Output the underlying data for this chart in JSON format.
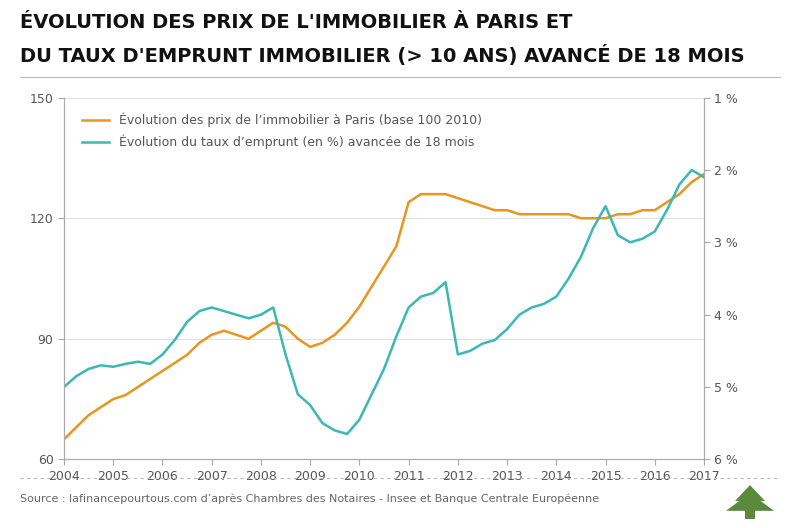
{
  "title_line1": "ÉVOLUTION DES PRIX DE L'IMMOBILIER À PARIS ET",
  "title_line2": "DU TAUX D'EMPRUNT IMMOBILIER (> 10 ANS) AVANCÉ DE 18 MOIS",
  "legend1": "Évolution des prix de l’immobilier à Paris (base 100 2010)",
  "legend2": "Évolution du taux d’emprunt (en %) avancée de 18 mois",
  "source": "Source : lafinancepourtous.com d’après Chambres des Notaires - Insee et Banque Centrale Européenne",
  "color_immo": "#E8961E",
  "color_taux": "#3CB8B2",
  "bg_color": "#FFFFFF",
  "title_color": "#111111",
  "text_color": "#555555",
  "grid_color": "#e0e0e0",
  "spine_color": "#aaaaaa",
  "yleft_min": 60,
  "yleft_max": 150,
  "yright_min": 1,
  "yright_max": 6,
  "immo_x": [
    2004.0,
    2004.25,
    2004.5,
    2004.75,
    2005.0,
    2005.25,
    2005.5,
    2005.75,
    2006.0,
    2006.25,
    2006.5,
    2006.75,
    2007.0,
    2007.25,
    2007.5,
    2007.75,
    2008.0,
    2008.25,
    2008.5,
    2008.75,
    2009.0,
    2009.25,
    2009.5,
    2009.75,
    2010.0,
    2010.25,
    2010.5,
    2010.75,
    2011.0,
    2011.25,
    2011.5,
    2011.75,
    2012.0,
    2012.25,
    2012.5,
    2012.75,
    2013.0,
    2013.25,
    2013.5,
    2013.75,
    2014.0,
    2014.25,
    2014.5,
    2014.75,
    2015.0,
    2015.25,
    2015.5,
    2015.75,
    2016.0,
    2016.25,
    2016.5,
    2016.75,
    2017.0
  ],
  "immo_y": [
    65,
    68,
    71,
    73,
    75,
    76,
    78,
    80,
    82,
    84,
    86,
    89,
    91,
    92,
    91,
    90,
    92,
    94,
    93,
    90,
    88,
    89,
    91,
    94,
    98,
    103,
    108,
    113,
    124,
    126,
    126,
    126,
    125,
    124,
    123,
    122,
    122,
    121,
    121,
    121,
    121,
    121,
    120,
    120,
    120,
    121,
    121,
    122,
    122,
    124,
    126,
    129,
    131
  ],
  "taux_y": [
    5.0,
    4.85,
    4.75,
    4.7,
    4.72,
    4.68,
    4.65,
    4.68,
    4.55,
    4.35,
    4.1,
    3.95,
    3.9,
    3.95,
    4.0,
    4.05,
    4.0,
    3.9,
    4.55,
    5.1,
    5.25,
    5.5,
    5.6,
    5.65,
    5.45,
    5.1,
    4.75,
    4.3,
    3.9,
    3.75,
    3.7,
    3.55,
    4.55,
    4.5,
    4.4,
    4.35,
    4.2,
    4.0,
    3.9,
    3.85,
    3.75,
    3.5,
    3.2,
    2.8,
    2.5,
    2.9,
    3.0,
    2.95,
    2.85,
    2.55,
    2.2,
    2.0,
    2.1
  ],
  "xlim": [
    2004,
    2017
  ],
  "xticks": [
    2004,
    2005,
    2006,
    2007,
    2008,
    2009,
    2010,
    2011,
    2012,
    2013,
    2014,
    2015,
    2016,
    2017
  ],
  "yleft_ticks": [
    60,
    90,
    120,
    150
  ],
  "yright_ticks": [
    1,
    2,
    3,
    4,
    5,
    6
  ]
}
